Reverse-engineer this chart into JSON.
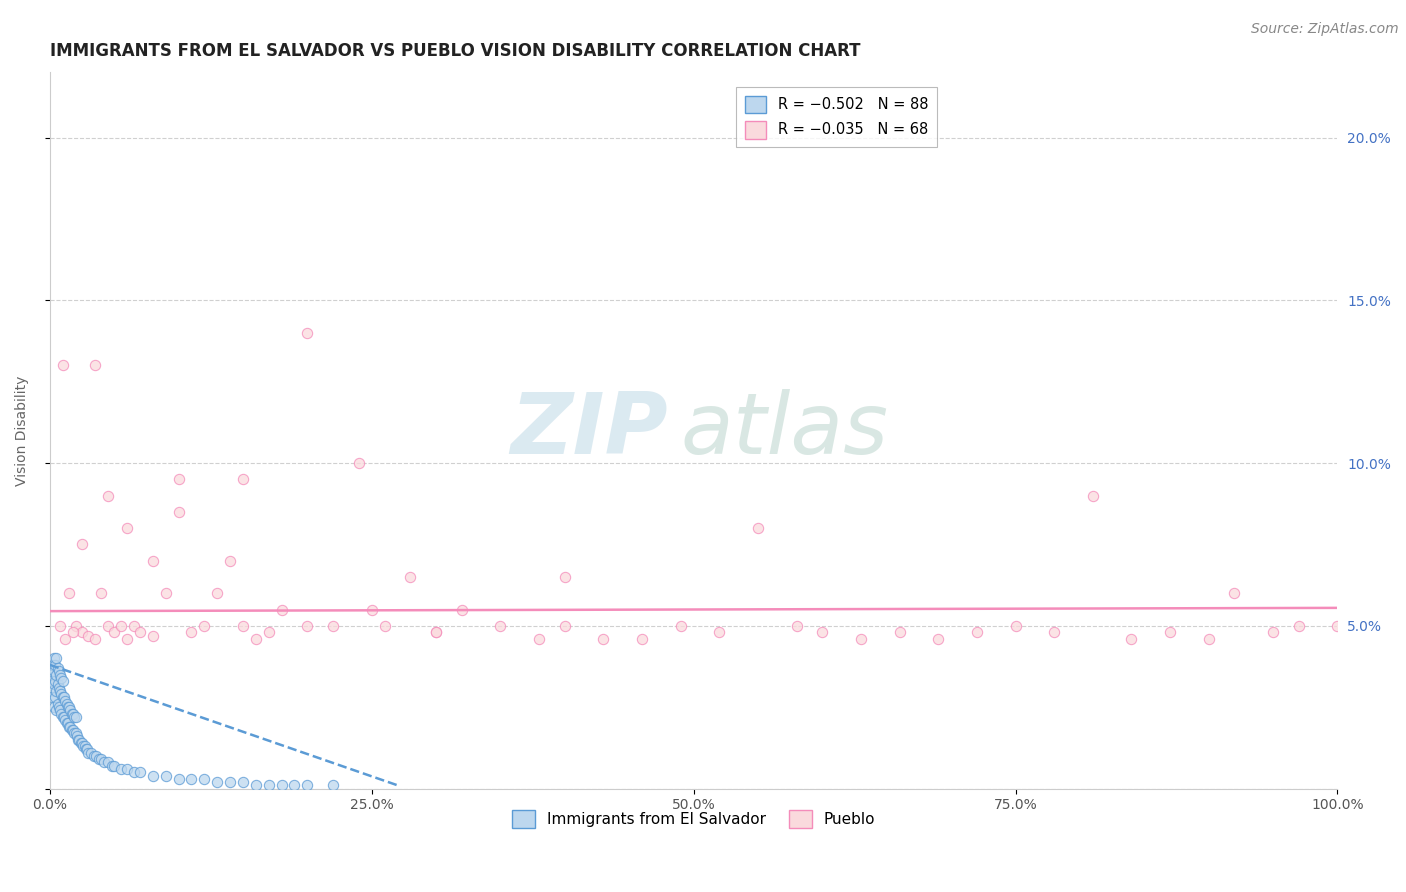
{
  "title": "IMMIGRANTS FROM EL SALVADOR VS PUEBLO VISION DISABILITY CORRELATION CHART",
  "source": "Source: ZipAtlas.com",
  "ylabel": "Vision Disability",
  "xlim": [
    0.0,
    1.0
  ],
  "ylim": [
    0.0,
    0.22
  ],
  "yticks": [
    0.0,
    0.05,
    0.1,
    0.15,
    0.2
  ],
  "ytick_labels_right": [
    "",
    "5.0%",
    "10.0%",
    "15.0%",
    "20.0%"
  ],
  "xticks": [
    0.0,
    0.25,
    0.5,
    0.75,
    1.0
  ],
  "xtick_labels": [
    "0.0%",
    "25.0%",
    "50.0%",
    "75.0%",
    "100.0%"
  ],
  "blue_scatter_x": [
    0.001,
    0.001,
    0.002,
    0.002,
    0.002,
    0.003,
    0.003,
    0.003,
    0.003,
    0.004,
    0.004,
    0.004,
    0.005,
    0.005,
    0.005,
    0.005,
    0.006,
    0.006,
    0.006,
    0.007,
    0.007,
    0.007,
    0.008,
    0.008,
    0.008,
    0.009,
    0.009,
    0.009,
    0.01,
    0.01,
    0.01,
    0.011,
    0.011,
    0.012,
    0.012,
    0.013,
    0.013,
    0.014,
    0.014,
    0.015,
    0.015,
    0.016,
    0.016,
    0.017,
    0.017,
    0.018,
    0.018,
    0.019,
    0.019,
    0.02,
    0.02,
    0.021,
    0.022,
    0.023,
    0.024,
    0.025,
    0.026,
    0.027,
    0.028,
    0.029,
    0.03,
    0.032,
    0.034,
    0.036,
    0.038,
    0.04,
    0.042,
    0.045,
    0.048,
    0.05,
    0.055,
    0.06,
    0.065,
    0.07,
    0.08,
    0.09,
    0.1,
    0.11,
    0.12,
    0.13,
    0.14,
    0.15,
    0.16,
    0.17,
    0.18,
    0.19,
    0.2,
    0.22
  ],
  "blue_scatter_y": [
    0.03,
    0.035,
    0.028,
    0.033,
    0.038,
    0.025,
    0.032,
    0.036,
    0.04,
    0.028,
    0.033,
    0.038,
    0.024,
    0.03,
    0.035,
    0.04,
    0.026,
    0.032,
    0.037,
    0.025,
    0.031,
    0.036,
    0.024,
    0.03,
    0.035,
    0.023,
    0.029,
    0.034,
    0.022,
    0.028,
    0.033,
    0.022,
    0.028,
    0.021,
    0.027,
    0.02,
    0.026,
    0.02,
    0.025,
    0.019,
    0.025,
    0.019,
    0.024,
    0.018,
    0.023,
    0.018,
    0.023,
    0.017,
    0.022,
    0.017,
    0.022,
    0.016,
    0.015,
    0.015,
    0.014,
    0.014,
    0.013,
    0.013,
    0.012,
    0.012,
    0.011,
    0.011,
    0.01,
    0.01,
    0.009,
    0.009,
    0.008,
    0.008,
    0.007,
    0.007,
    0.006,
    0.006,
    0.005,
    0.005,
    0.004,
    0.004,
    0.003,
    0.003,
    0.003,
    0.002,
    0.002,
    0.002,
    0.001,
    0.001,
    0.001,
    0.001,
    0.001,
    0.001
  ],
  "blue_line_x": [
    0.0,
    0.27
  ],
  "blue_line_y": [
    0.038,
    0.001
  ],
  "pink_scatter_x": [
    0.01,
    0.015,
    0.02,
    0.025,
    0.03,
    0.035,
    0.04,
    0.045,
    0.05,
    0.055,
    0.06,
    0.065,
    0.07,
    0.08,
    0.09,
    0.1,
    0.11,
    0.12,
    0.13,
    0.14,
    0.15,
    0.16,
    0.17,
    0.18,
    0.2,
    0.22,
    0.24,
    0.26,
    0.28,
    0.3,
    0.32,
    0.35,
    0.38,
    0.4,
    0.43,
    0.46,
    0.49,
    0.52,
    0.55,
    0.58,
    0.6,
    0.63,
    0.66,
    0.69,
    0.72,
    0.75,
    0.78,
    0.81,
    0.84,
    0.87,
    0.9,
    0.92,
    0.95,
    0.97,
    1.0,
    0.008,
    0.012,
    0.018,
    0.025,
    0.035,
    0.045,
    0.06,
    0.08,
    0.1,
    0.15,
    0.2,
    0.25,
    0.3,
    0.4
  ],
  "pink_scatter_y": [
    0.13,
    0.06,
    0.05,
    0.048,
    0.047,
    0.046,
    0.06,
    0.05,
    0.048,
    0.05,
    0.046,
    0.05,
    0.048,
    0.047,
    0.06,
    0.085,
    0.048,
    0.05,
    0.06,
    0.07,
    0.095,
    0.046,
    0.048,
    0.055,
    0.14,
    0.05,
    0.1,
    0.05,
    0.065,
    0.048,
    0.055,
    0.05,
    0.046,
    0.065,
    0.046,
    0.046,
    0.05,
    0.048,
    0.08,
    0.05,
    0.048,
    0.046,
    0.048,
    0.046,
    0.048,
    0.05,
    0.048,
    0.09,
    0.046,
    0.048,
    0.046,
    0.06,
    0.048,
    0.05,
    0.05,
    0.05,
    0.046,
    0.048,
    0.075,
    0.13,
    0.09,
    0.08,
    0.07,
    0.095,
    0.05,
    0.05,
    0.055,
    0.048,
    0.05
  ],
  "pink_line_x": [
    0.0,
    1.0
  ],
  "pink_line_y": [
    0.0545,
    0.0555
  ],
  "blue_color": "#5b9bd5",
  "blue_fill": "#bdd7ee",
  "pink_color": "#f48cba",
  "pink_fill": "#fadadd",
  "background_color": "#ffffff",
  "grid_color": "#d0d0d0",
  "watermark_zip": "ZIP",
  "watermark_atlas": "atlas",
  "title_fontsize": 12,
  "label_fontsize": 10,
  "tick_fontsize": 10,
  "source_fontsize": 10,
  "right_ytick_color": "#4472c4"
}
